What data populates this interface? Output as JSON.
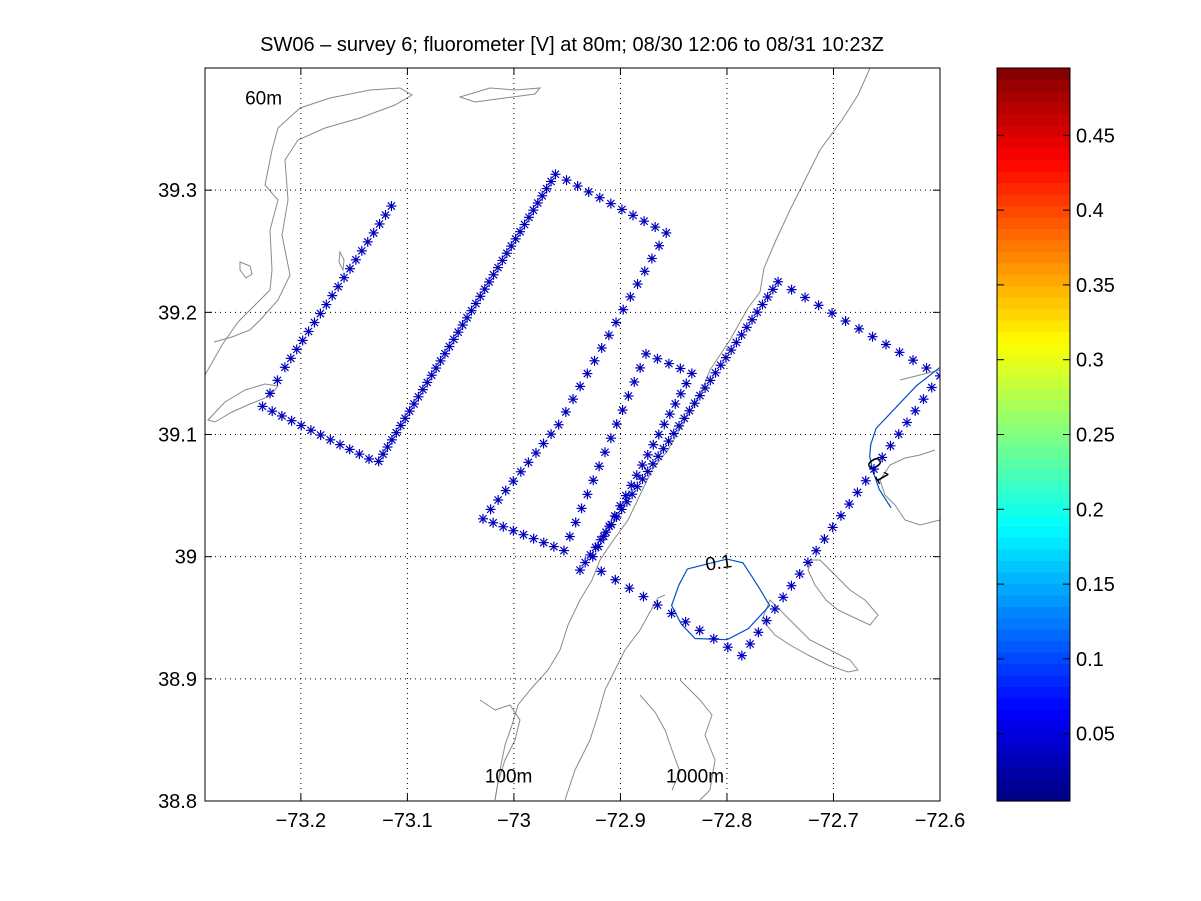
{
  "chart_data": {
    "type": "scatter",
    "title": "SW06 – survey 6; fluorometer [V] at 80m; 08/30 12:06 to 08/31 10:23Z",
    "xlabel": "",
    "ylabel": "",
    "xlim": [
      -73.29,
      -72.6
    ],
    "ylim": [
      38.8,
      39.4
    ],
    "x_ticks": [
      -73.2,
      -73.1,
      -73.0,
      -72.9,
      -72.8,
      -72.7,
      -72.6
    ],
    "x_tick_labels": [
      "−73.2",
      "−73.1",
      "−73",
      "−72.9",
      "−72.8",
      "−72.7",
      "−72.6"
    ],
    "y_ticks": [
      38.8,
      38.9,
      39.0,
      39.1,
      39.2,
      39.3
    ],
    "y_tick_labels": [
      "38.8",
      "38.9",
      "39",
      "39.1",
      "39.2",
      "39.3"
    ],
    "grid": "dotted",
    "marker": "*",
    "marker_color": "#0000bb",
    "colorbar": {
      "min": 0.005,
      "max": 0.495,
      "ticks": [
        0.05,
        0.1,
        0.15,
        0.2,
        0.25,
        0.3,
        0.35,
        0.4,
        0.45
      ],
      "tick_labels": [
        "0.05",
        "0.1",
        "0.15",
        "0.2",
        "0.25",
        "0.3",
        "0.35",
        "0.4",
        "0.45"
      ],
      "colormap": "jet"
    },
    "bathymetry_labels": [
      {
        "text": "60m",
        "x": -73.235,
        "y": 39.37
      },
      {
        "text": "100m",
        "x": -73.005,
        "y": 38.815
      },
      {
        "text": "1000m",
        "x": -72.83,
        "y": 38.815
      }
    ],
    "contour_labels": [
      {
        "text": "0.1",
        "x": -72.807,
        "y": 38.99,
        "angle": -8
      },
      {
        "text": "0.1",
        "x": -72.663,
        "y": 39.068,
        "angle": 60
      }
    ],
    "contour_color": "#0050c8",
    "contours": [
      [
        [
          -72.837,
          38.99
        ],
        [
          -72.8,
          38.998
        ],
        [
          -72.785,
          38.995
        ],
        [
          -72.776,
          38.983
        ],
        [
          -72.768,
          38.972
        ],
        [
          -72.76,
          38.96
        ],
        [
          -72.78,
          38.941
        ],
        [
          -72.8,
          38.932
        ],
        [
          -72.83,
          38.933
        ],
        [
          -72.843,
          38.945
        ],
        [
          -72.852,
          38.96
        ],
        [
          -72.845,
          38.977
        ],
        [
          -72.837,
          38.99
        ]
      ],
      [
        [
          -72.6,
          39.155
        ],
        [
          -72.622,
          39.14
        ],
        [
          -72.66,
          39.105
        ],
        [
          -72.665,
          39.092
        ],
        [
          -72.666,
          39.082
        ],
        [
          -72.663,
          39.07
        ],
        [
          -72.657,
          39.055
        ],
        [
          -72.646,
          39.04
        ]
      ]
    ],
    "track_segments": [
      {
        "from": [
          -73.115,
          39.287
        ],
        "to": [
          -73.215,
          39.155
        ],
        "n": 18
      },
      {
        "from": [
          -73.215,
          39.155
        ],
        "to": [
          -73.236,
          39.123
        ],
        "n": 3
      },
      {
        "from": [
          -73.236,
          39.123
        ],
        "to": [
          -73.136,
          39.08
        ],
        "n": 11
      },
      {
        "from": [
          -73.136,
          39.08
        ],
        "to": [
          -73.127,
          39.078
        ],
        "n": 1
      },
      {
        "from": [
          -73.127,
          39.078
        ],
        "to": [
          -72.961,
          39.313
        ],
        "n": 40
      },
      {
        "from": [
          -72.961,
          39.313
        ],
        "to": [
          -72.857,
          39.265
        ],
        "n": 10
      },
      {
        "from": [
          -72.857,
          39.265
        ],
        "to": [
          -72.958,
          39.108
        ],
        "n": 15
      },
      {
        "from": [
          -72.958,
          39.108
        ],
        "to": [
          -73.029,
          39.031
        ],
        "n": 10
      },
      {
        "from": [
          -73.029,
          39.031
        ],
        "to": [
          -72.953,
          39.005
        ],
        "n": 8
      },
      {
        "from": [
          -72.953,
          39.005
        ],
        "to": [
          -72.876,
          39.166
        ],
        "n": 14
      },
      {
        "from": [
          -72.876,
          39.166
        ],
        "to": [
          -72.833,
          39.15
        ],
        "n": 4
      },
      {
        "from": [
          -72.833,
          39.15
        ],
        "to": [
          -72.926,
          39.0
        ],
        "n": 18
      },
      {
        "from": [
          -72.926,
          39.0
        ],
        "to": [
          -72.938,
          38.989
        ],
        "n": 1
      },
      {
        "from": [
          -72.938,
          38.989
        ],
        "to": [
          -72.752,
          39.225
        ],
        "n": 38
      },
      {
        "from": [
          -72.752,
          39.225
        ],
        "to": [
          -72.6,
          39.148
        ],
        "n": 12
      },
      {
        "from": [
          -72.6,
          39.148
        ],
        "to": [
          -72.786,
          38.919
        ],
        "n": 24
      },
      {
        "from": [
          -72.786,
          38.919
        ],
        "to": [
          -72.918,
          38.988
        ],
        "n": 10
      }
    ]
  }
}
